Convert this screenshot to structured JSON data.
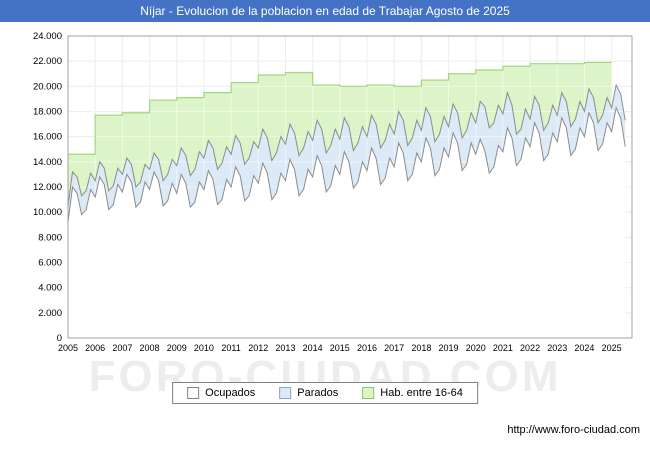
{
  "title_bar": {
    "text": "Níjar - Evolucion de la poblacion en edad de Trabajar Agosto de 2025",
    "bg": "#4473c5",
    "fg": "#ffffff"
  },
  "watermark": "FORO-CIUDAD.COM",
  "footer": {
    "url": "http://www.foro-ciudad.com"
  },
  "legend": [
    {
      "label": "Ocupados",
      "fill": "#ffffff",
      "border": "#808080"
    },
    {
      "label": "Parados",
      "fill": "#dce9f7",
      "border": "#8aa6c4"
    },
    {
      "label": "Hab. entre 16-64",
      "fill": "#dcf4c7",
      "border": "#8cc66d"
    }
  ],
  "chart_data": {
    "type": "area",
    "title": "Níjar - Evolucion de la poblacion en edad de Trabajar Agosto de 2025",
    "ylabel": "",
    "xlabel": "",
    "ylim": [
      0,
      24000
    ],
    "ytick_step": 2000,
    "y_tick_labels": [
      "0",
      "2.000",
      "4.000",
      "6.000",
      "8.000",
      "10.000",
      "12.000",
      "14.000",
      "16.000",
      "18.000",
      "20.000",
      "22.000",
      "24.000"
    ],
    "x_years": [
      2005,
      2006,
      2007,
      2008,
      2009,
      2010,
      2011,
      2012,
      2013,
      2014,
      2015,
      2016,
      2017,
      2018,
      2019,
      2020,
      2021,
      2022,
      2023,
      2024,
      2025
    ],
    "x_start": 2005,
    "x_max": 2025.75,
    "points_per_year": 6,
    "legend_position": "bottom",
    "grid": true,
    "colors": {
      "grid": "#dcdcdc",
      "grid_overlay": "rgba(255,255,255,0.55)",
      "border": "#a0a0a0",
      "text": "#000000"
    },
    "series": [
      {
        "name": "Ocupados",
        "stack": "base",
        "color_fill": "#ffffff",
        "color_line": "#8c8c8c",
        "values": [
          9200,
          12000,
          11500,
          9800,
          10200,
          11800,
          11200,
          12800,
          12200,
          10200,
          10600,
          12200,
          11600,
          13000,
          12400,
          10400,
          10800,
          12400,
          11800,
          13200,
          12500,
          10500,
          10900,
          12300,
          11500,
          13000,
          12300,
          10400,
          10800,
          12400,
          11800,
          13300,
          12600,
          10600,
          11000,
          12600,
          12000,
          13600,
          12900,
          10900,
          11300,
          12900,
          12300,
          13900,
          13100,
          11000,
          11500,
          13100,
          12500,
          14200,
          13400,
          11300,
          11800,
          13400,
          12800,
          14500,
          13700,
          11600,
          12100,
          13700,
          13000,
          14800,
          14000,
          11900,
          12400,
          14000,
          13300,
          15100,
          14300,
          12200,
          12700,
          14300,
          13600,
          15500,
          14700,
          12500,
          13000,
          14700,
          14000,
          15900,
          15100,
          12900,
          13400,
          15100,
          14400,
          16300,
          15500,
          13300,
          13800,
          15500,
          14600,
          15800,
          14900,
          13100,
          13600,
          15300,
          14800,
          16700,
          15900,
          13700,
          14200,
          15900,
          15200,
          17100,
          16300,
          14100,
          14600,
          16300,
          15600,
          17500,
          16700,
          14500,
          15000,
          16700,
          16000,
          17900,
          17100,
          14900,
          15400,
          17100,
          16400,
          18300,
          17500,
          15200
        ]
      },
      {
        "name": "Parados",
        "stack": "on-ocupados",
        "color_fill": "#dce9f7",
        "color_line": "#8c8c8c",
        "values": [
          1300,
          1200,
          1300,
          1500,
          1500,
          1300,
          1300,
          1200,
          1300,
          1500,
          1500,
          1300,
          1400,
          1300,
          1400,
          1600,
          1600,
          1400,
          1600,
          1500,
          1700,
          2000,
          2100,
          1900,
          2200,
          2100,
          2200,
          2500,
          2600,
          2400,
          2500,
          2400,
          2500,
          2800,
          2900,
          2600,
          2600,
          2500,
          2600,
          2900,
          3000,
          2700,
          2800,
          2700,
          2800,
          3100,
          3200,
          2900,
          2900,
          2800,
          2900,
          3200,
          3300,
          3000,
          2900,
          2800,
          2900,
          3100,
          3200,
          2900,
          2800,
          2700,
          2800,
          3000,
          3100,
          2800,
          2700,
          2600,
          2700,
          2900,
          3000,
          2700,
          2600,
          2500,
          2600,
          2800,
          2900,
          2600,
          2500,
          2400,
          2500,
          2700,
          2800,
          2500,
          2400,
          2300,
          2400,
          2600,
          2700,
          2400,
          2500,
          3000,
          3500,
          3600,
          3500,
          3200,
          3000,
          2800,
          2600,
          2500,
          2400,
          2300,
          2200,
          2100,
          2200,
          2400,
          2500,
          2200,
          2100,
          2000,
          2100,
          2300,
          2400,
          2100,
          2000,
          1900,
          2000,
          2200,
          2300,
          2000,
          1900,
          1800,
          1900,
          2100
        ]
      },
      {
        "name": "Hab. entre 16-64",
        "type": "annual-step",
        "color_fill": "#dcf4c7",
        "color_line": "#a2d77e",
        "years": [
          2005,
          2006,
          2007,
          2008,
          2009,
          2010,
          2011,
          2012,
          2013,
          2014,
          2015,
          2016,
          2017,
          2018,
          2019,
          2020,
          2021,
          2022,
          2023,
          2024
        ],
        "values": [
          14600,
          17700,
          17900,
          18900,
          19100,
          19500,
          20300,
          20900,
          21100,
          20100,
          20000,
          20100,
          20000,
          20500,
          21000,
          21300,
          21600,
          21800,
          21800,
          21900
        ]
      }
    ]
  }
}
